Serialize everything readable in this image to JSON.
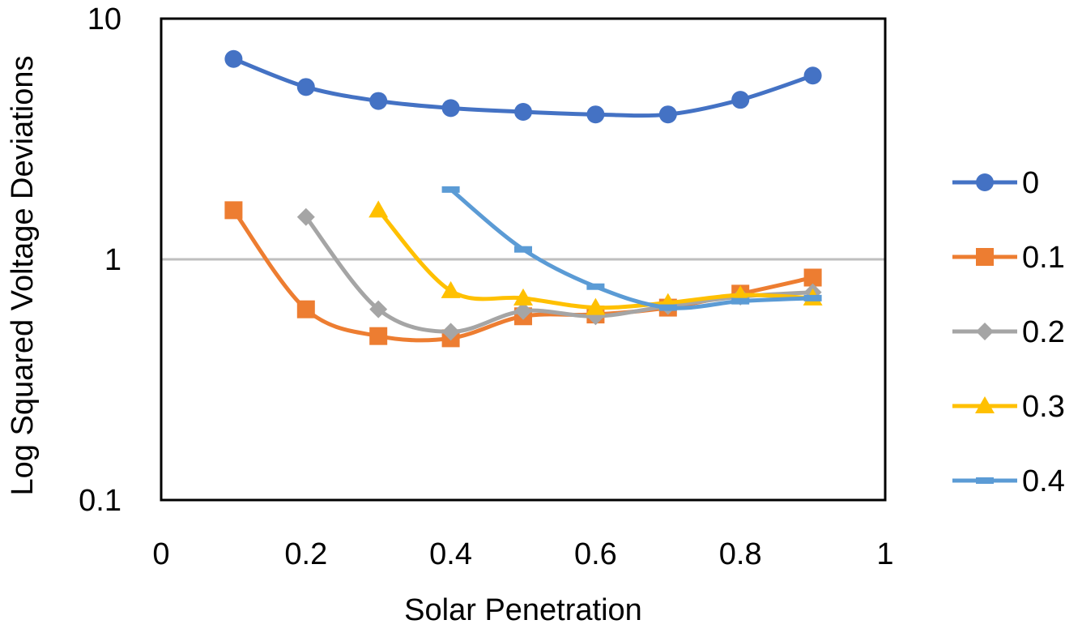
{
  "chart_data": {
    "type": "line",
    "title": "",
    "xlabel": "Solar Penetration",
    "ylabel": "Log Squared Voltage Deviations",
    "xlim": [
      0,
      1
    ],
    "ylim": [
      0.1,
      10
    ],
    "y_scale": "log",
    "x_ticks": [
      "0",
      "0.2",
      "0.4",
      "0.6",
      "0.8",
      "1"
    ],
    "y_ticks": [
      "0.1",
      "1",
      "10"
    ],
    "grid": "major y at 1 only",
    "legend_position": "right",
    "series": [
      {
        "name": "0",
        "color": "#4472C4",
        "marker": "circle",
        "x": [
          0.1,
          0.2,
          0.3,
          0.4,
          0.5,
          0.6,
          0.7,
          0.8,
          0.9
        ],
        "values": [
          6.8,
          5.2,
          4.55,
          4.25,
          4.1,
          4.0,
          4.0,
          4.6,
          5.8
        ]
      },
      {
        "name": "0.1",
        "color": "#ED7D31",
        "marker": "square",
        "x": [
          0.1,
          0.2,
          0.3,
          0.4,
          0.5,
          0.6,
          0.7,
          0.8,
          0.9
        ],
        "values": [
          1.6,
          0.62,
          0.48,
          0.47,
          0.58,
          0.59,
          0.63,
          0.72,
          0.84
        ]
      },
      {
        "name": "0.2",
        "color": "#A5A5A5",
        "marker": "diamond",
        "x": [
          0.2,
          0.3,
          0.4,
          0.5,
          0.6,
          0.7,
          0.8,
          0.9
        ],
        "values": [
          1.5,
          0.62,
          0.5,
          0.61,
          0.58,
          0.64,
          0.7,
          0.73
        ]
      },
      {
        "name": "0.3",
        "color": "#FFC000",
        "marker": "triangle",
        "x": [
          0.3,
          0.4,
          0.5,
          0.6,
          0.7,
          0.8,
          0.9
        ],
        "values": [
          1.6,
          0.74,
          0.69,
          0.63,
          0.66,
          0.71,
          0.69
        ]
      },
      {
        "name": "0.4",
        "color": "#5B9BD5",
        "marker": "dash",
        "x": [
          0.4,
          0.5,
          0.6,
          0.7,
          0.8,
          0.9
        ],
        "values": [
          1.95,
          1.1,
          0.77,
          0.63,
          0.67,
          0.69
        ]
      }
    ]
  }
}
